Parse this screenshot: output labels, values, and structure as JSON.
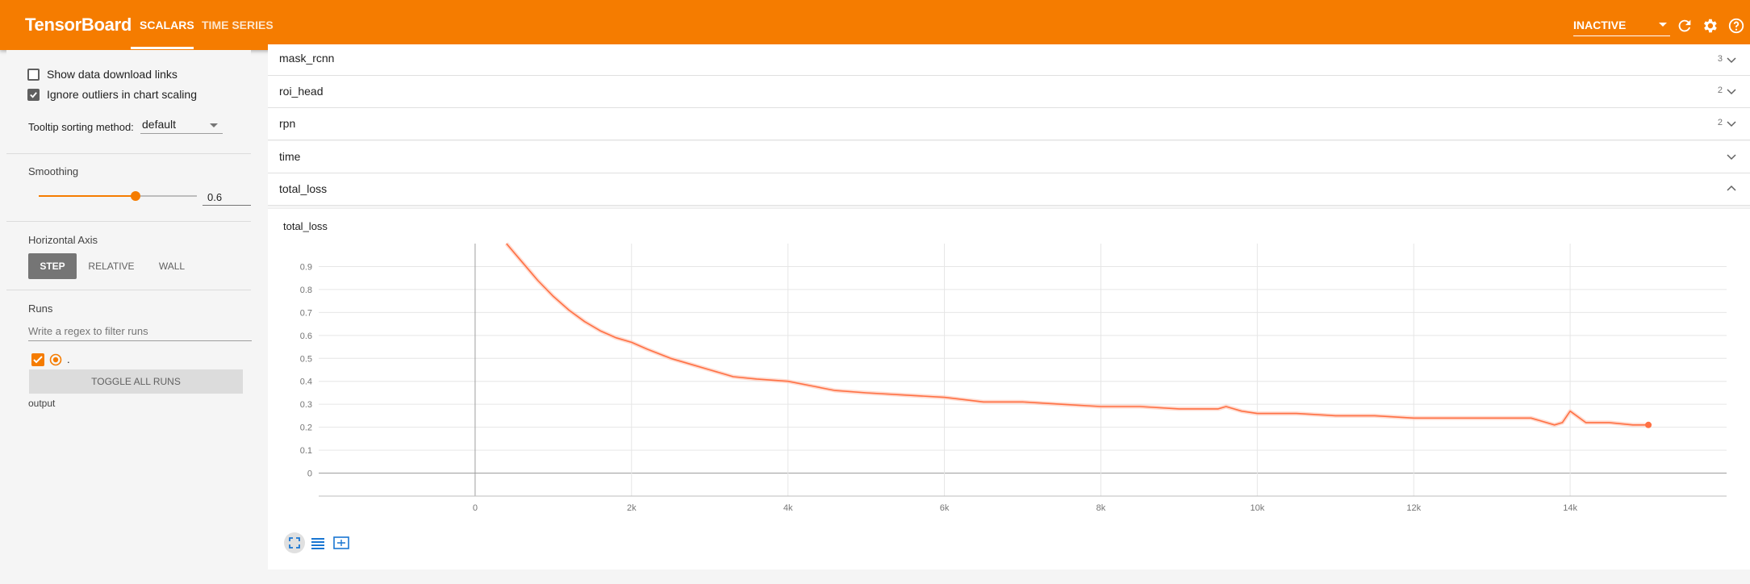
{
  "header": {
    "brand": "TensorBoard",
    "tabs": [
      "SCALARS",
      "TIME SERIES"
    ],
    "status": "INACTIVE",
    "colors": {
      "accent": "#f57c00",
      "text": "#ffffff"
    },
    "icons": [
      "refresh-icon",
      "settings-icon",
      "help-icon"
    ]
  },
  "sidebar": {
    "show_download_links": "Show data download links",
    "ignore_outliers": "Ignore outliers in chart scaling",
    "tooltip_label": "Tooltip sorting method:",
    "tooltip_value": "default",
    "smoothing_label": "Smoothing",
    "smoothing_value": "0.6",
    "smoothing_level": 0.6,
    "axis_label": "Horizontal Axis",
    "axis_buttons": [
      "STEP",
      "RELATIVE",
      "WALL"
    ],
    "runs_label": "Runs",
    "regex_placeholder": "Write a regex to filter runs",
    "run_name": ".",
    "toggle_all": "TOGGLE ALL RUNS",
    "output_dir": "output"
  },
  "groups": [
    {
      "name": "mask_rcnn",
      "count": "3"
    },
    {
      "name": "roi_head",
      "count": "2"
    },
    {
      "name": "rpn",
      "count": "2"
    },
    {
      "name": "time",
      "count": ""
    },
    {
      "name": "total_loss",
      "count": ""
    }
  ],
  "card": {
    "title": "total_loss"
  },
  "chart_data": {
    "type": "line",
    "title": "total_loss",
    "xlabel": "",
    "ylabel": "",
    "x_ticks": [
      "0",
      "2k",
      "4k",
      "6k",
      "8k",
      "10k",
      "12k",
      "14k"
    ],
    "y_ticks": [
      "0",
      "0.1",
      "0.2",
      "0.3",
      "0.4",
      "0.5",
      "0.6",
      "0.7",
      "0.8",
      "0.9"
    ],
    "xlim": [
      -2000,
      16000
    ],
    "ylim": [
      -0.1,
      1.0
    ],
    "grid": true,
    "series": [
      {
        "color": "#ff7043",
        "x": [
          400,
          600,
          800,
          1000,
          1200,
          1400,
          1600,
          1800,
          2000,
          2200,
          2500,
          2800,
          3000,
          3300,
          3600,
          4000,
          4300,
          4600,
          5000,
          5500,
          6000,
          6500,
          7000,
          7500,
          8000,
          8500,
          9000,
          9500,
          9600,
          9800,
          10000,
          10500,
          11000,
          11500,
          12000,
          12500,
          13000,
          13500,
          13800,
          13900,
          14000,
          14200,
          14500,
          14800,
          15000
        ],
        "y": [
          1.0,
          0.92,
          0.84,
          0.77,
          0.71,
          0.66,
          0.62,
          0.59,
          0.57,
          0.54,
          0.5,
          0.47,
          0.45,
          0.42,
          0.41,
          0.4,
          0.38,
          0.36,
          0.35,
          0.34,
          0.33,
          0.31,
          0.31,
          0.3,
          0.29,
          0.29,
          0.28,
          0.28,
          0.29,
          0.27,
          0.26,
          0.26,
          0.25,
          0.25,
          0.24,
          0.24,
          0.24,
          0.24,
          0.21,
          0.22,
          0.27,
          0.22,
          0.22,
          0.21,
          0.21
        ]
      }
    ]
  }
}
